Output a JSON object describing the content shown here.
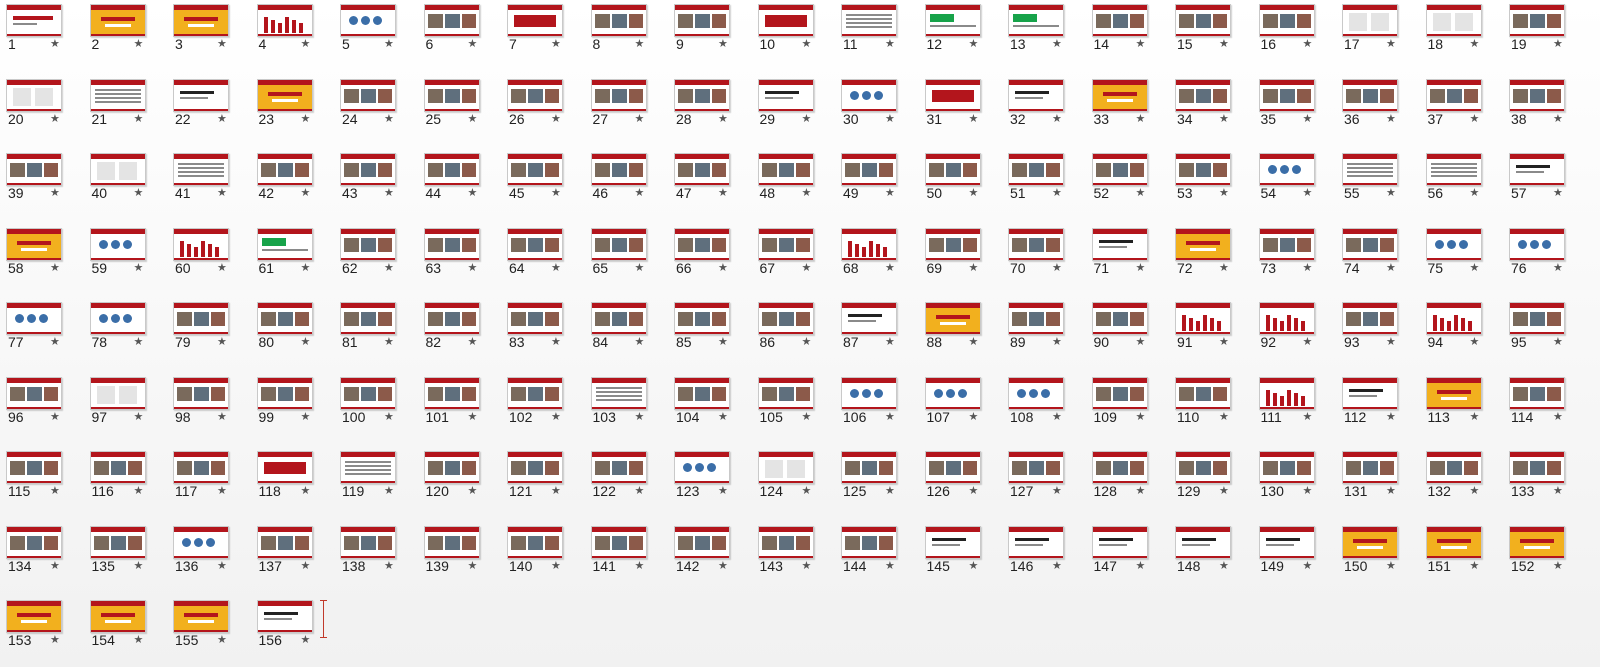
{
  "slide_sorter": {
    "star_icon": "★",
    "colors": {
      "red": "#b3151c",
      "yellow": "#f2b01e",
      "green": "#17a34a",
      "gray": "#8a8a8a",
      "photo": "#7a6a5c",
      "blue": "#3b6ea8"
    },
    "slides": [
      {
        "number": "1",
        "style": "title"
      },
      {
        "number": "2",
        "style": "yellow"
      },
      {
        "number": "3",
        "style": "yellow"
      },
      {
        "number": "4",
        "style": "chart"
      },
      {
        "number": "5",
        "style": "icons"
      },
      {
        "number": "6",
        "style": "photo"
      },
      {
        "number": "7",
        "style": "red"
      },
      {
        "number": "8",
        "style": "photo"
      },
      {
        "number": "9",
        "style": "photo"
      },
      {
        "number": "10",
        "style": "red"
      },
      {
        "number": "11",
        "style": "table"
      },
      {
        "number": "12",
        "style": "green"
      },
      {
        "number": "13",
        "style": "green"
      },
      {
        "number": "14",
        "style": "photo"
      },
      {
        "number": "15",
        "style": "photo"
      },
      {
        "number": "16",
        "style": "photo"
      },
      {
        "number": "17",
        "style": "doc"
      },
      {
        "number": "18",
        "style": "doc"
      },
      {
        "number": "19",
        "style": "photo"
      },
      {
        "number": "20",
        "style": "doc"
      },
      {
        "number": "21",
        "style": "table"
      },
      {
        "number": "22",
        "style": "text"
      },
      {
        "number": "23",
        "style": "yellow"
      },
      {
        "number": "24",
        "style": "photo"
      },
      {
        "number": "25",
        "style": "photo"
      },
      {
        "number": "26",
        "style": "photo"
      },
      {
        "number": "27",
        "style": "photo"
      },
      {
        "number": "28",
        "style": "photo"
      },
      {
        "number": "29",
        "style": "text"
      },
      {
        "number": "30",
        "style": "icons"
      },
      {
        "number": "31",
        "style": "red"
      },
      {
        "number": "32",
        "style": "text"
      },
      {
        "number": "33",
        "style": "yellow"
      },
      {
        "number": "34",
        "style": "photo"
      },
      {
        "number": "35",
        "style": "photo"
      },
      {
        "number": "36",
        "style": "photo"
      },
      {
        "number": "37",
        "style": "photo"
      },
      {
        "number": "38",
        "style": "photo"
      },
      {
        "number": "39",
        "style": "photo"
      },
      {
        "number": "40",
        "style": "doc"
      },
      {
        "number": "41",
        "style": "table"
      },
      {
        "number": "42",
        "style": "photo"
      },
      {
        "number": "43",
        "style": "photo"
      },
      {
        "number": "44",
        "style": "photo"
      },
      {
        "number": "45",
        "style": "photo"
      },
      {
        "number": "46",
        "style": "photo"
      },
      {
        "number": "47",
        "style": "photo"
      },
      {
        "number": "48",
        "style": "photo"
      },
      {
        "number": "49",
        "style": "photo"
      },
      {
        "number": "50",
        "style": "photo"
      },
      {
        "number": "51",
        "style": "photo"
      },
      {
        "number": "52",
        "style": "photo"
      },
      {
        "number": "53",
        "style": "photo"
      },
      {
        "number": "54",
        "style": "icons"
      },
      {
        "number": "55",
        "style": "table"
      },
      {
        "number": "56",
        "style": "table"
      },
      {
        "number": "57",
        "style": "text"
      },
      {
        "number": "58",
        "style": "yellow"
      },
      {
        "number": "59",
        "style": "icons"
      },
      {
        "number": "60",
        "style": "chart"
      },
      {
        "number": "61",
        "style": "green"
      },
      {
        "number": "62",
        "style": "photo"
      },
      {
        "number": "63",
        "style": "photo"
      },
      {
        "number": "64",
        "style": "photo"
      },
      {
        "number": "65",
        "style": "photo"
      },
      {
        "number": "66",
        "style": "photo"
      },
      {
        "number": "67",
        "style": "photo"
      },
      {
        "number": "68",
        "style": "chart"
      },
      {
        "number": "69",
        "style": "photo"
      },
      {
        "number": "70",
        "style": "photo"
      },
      {
        "number": "71",
        "style": "text"
      },
      {
        "number": "72",
        "style": "yellow"
      },
      {
        "number": "73",
        "style": "photo"
      },
      {
        "number": "74",
        "style": "photo"
      },
      {
        "number": "75",
        "style": "icons"
      },
      {
        "number": "76",
        "style": "icons"
      },
      {
        "number": "77",
        "style": "icons"
      },
      {
        "number": "78",
        "style": "icons"
      },
      {
        "number": "79",
        "style": "photo"
      },
      {
        "number": "80",
        "style": "photo"
      },
      {
        "number": "81",
        "style": "photo"
      },
      {
        "number": "82",
        "style": "photo"
      },
      {
        "number": "83",
        "style": "photo"
      },
      {
        "number": "84",
        "style": "photo"
      },
      {
        "number": "85",
        "style": "photo"
      },
      {
        "number": "86",
        "style": "photo"
      },
      {
        "number": "87",
        "style": "text"
      },
      {
        "number": "88",
        "style": "yellow"
      },
      {
        "number": "89",
        "style": "photo"
      },
      {
        "number": "90",
        "style": "photo"
      },
      {
        "number": "91",
        "style": "chart"
      },
      {
        "number": "92",
        "style": "chart"
      },
      {
        "number": "93",
        "style": "photo"
      },
      {
        "number": "94",
        "style": "chart"
      },
      {
        "number": "95",
        "style": "photo"
      },
      {
        "number": "96",
        "style": "photo"
      },
      {
        "number": "97",
        "style": "doc"
      },
      {
        "number": "98",
        "style": "photo"
      },
      {
        "number": "99",
        "style": "photo"
      },
      {
        "number": "100",
        "style": "photo"
      },
      {
        "number": "101",
        "style": "photo"
      },
      {
        "number": "102",
        "style": "photo"
      },
      {
        "number": "103",
        "style": "table"
      },
      {
        "number": "104",
        "style": "photo"
      },
      {
        "number": "105",
        "style": "photo"
      },
      {
        "number": "106",
        "style": "icons"
      },
      {
        "number": "107",
        "style": "icons"
      },
      {
        "number": "108",
        "style": "icons"
      },
      {
        "number": "109",
        "style": "photo"
      },
      {
        "number": "110",
        "style": "photo"
      },
      {
        "number": "111",
        "style": "chart"
      },
      {
        "number": "112",
        "style": "text"
      },
      {
        "number": "113",
        "style": "yellow"
      },
      {
        "number": "114",
        "style": "photo"
      },
      {
        "number": "115",
        "style": "photo"
      },
      {
        "number": "116",
        "style": "photo"
      },
      {
        "number": "117",
        "style": "photo"
      },
      {
        "number": "118",
        "style": "red"
      },
      {
        "number": "119",
        "style": "table"
      },
      {
        "number": "120",
        "style": "photo"
      },
      {
        "number": "121",
        "style": "photo"
      },
      {
        "number": "122",
        "style": "photo"
      },
      {
        "number": "123",
        "style": "icons"
      },
      {
        "number": "124",
        "style": "doc"
      },
      {
        "number": "125",
        "style": "photo"
      },
      {
        "number": "126",
        "style": "photo"
      },
      {
        "number": "127",
        "style": "photo"
      },
      {
        "number": "128",
        "style": "photo"
      },
      {
        "number": "129",
        "style": "photo"
      },
      {
        "number": "130",
        "style": "photo"
      },
      {
        "number": "131",
        "style": "photo"
      },
      {
        "number": "132",
        "style": "photo"
      },
      {
        "number": "133",
        "style": "photo"
      },
      {
        "number": "134",
        "style": "photo"
      },
      {
        "number": "135",
        "style": "photo"
      },
      {
        "number": "136",
        "style": "icons"
      },
      {
        "number": "137",
        "style": "photo"
      },
      {
        "number": "138",
        "style": "photo"
      },
      {
        "number": "139",
        "style": "photo"
      },
      {
        "number": "140",
        "style": "photo"
      },
      {
        "number": "141",
        "style": "photo"
      },
      {
        "number": "142",
        "style": "photo"
      },
      {
        "number": "143",
        "style": "photo"
      },
      {
        "number": "144",
        "style": "photo"
      },
      {
        "number": "145",
        "style": "text"
      },
      {
        "number": "146",
        "style": "text"
      },
      {
        "number": "147",
        "style": "text"
      },
      {
        "number": "148",
        "style": "text"
      },
      {
        "number": "149",
        "style": "text"
      },
      {
        "number": "150",
        "style": "yellow"
      },
      {
        "number": "151",
        "style": "yellow"
      },
      {
        "number": "152",
        "style": "yellow"
      },
      {
        "number": "153",
        "style": "yellow"
      },
      {
        "number": "154",
        "style": "yellow"
      },
      {
        "number": "155",
        "style": "yellow"
      },
      {
        "number": "156",
        "style": "text"
      }
    ]
  }
}
